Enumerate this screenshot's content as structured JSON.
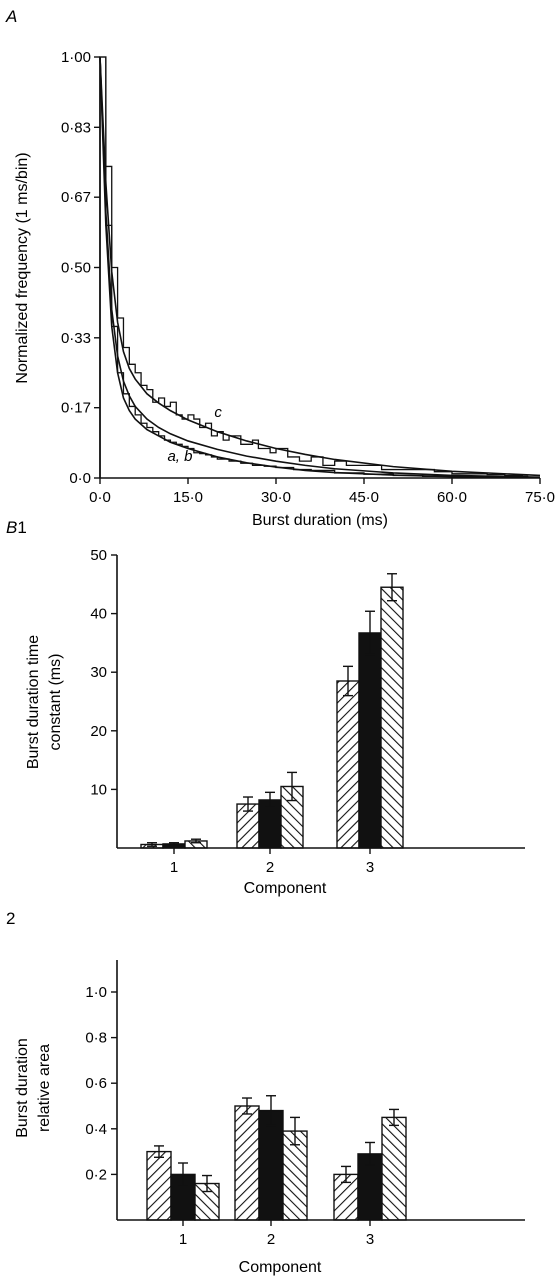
{
  "panels": {
    "a_label": "A",
    "b_label": "B",
    "b1_label": "1",
    "b2_label": "2"
  },
  "chart_data": [
    {
      "id": "A",
      "type": "line",
      "xlabel": "Burst duration (ms)",
      "ylabel": "Normalized frequency (1 ms/bin)",
      "xlim": [
        0,
        75
      ],
      "ylim": [
        0,
        1
      ],
      "x_tick_labels": [
        "0·0",
        "15·0",
        "30·0",
        "45·0",
        "60·0",
        "75·0"
      ],
      "x_ticks": [
        0,
        15,
        30,
        45,
        60,
        75
      ],
      "y_tick_labels": [
        "0·0",
        "0·17",
        "0·33",
        "0·50",
        "0·67",
        "0·83",
        "1·00"
      ],
      "y_ticks": [
        0,
        0.167,
        0.333,
        0.5,
        0.667,
        0.833,
        1.0
      ],
      "curve_labels": [
        {
          "text": "c",
          "at": [
            19.5,
            0.145
          ]
        },
        {
          "text": "a, b",
          "at": [
            11.5,
            0.04
          ]
        }
      ],
      "series": [
        {
          "name": "a",
          "kind": "fit",
          "x": [
            0,
            0.5,
            1,
            2,
            3,
            4,
            5,
            6,
            8,
            10,
            12,
            15,
            20,
            25,
            30,
            35,
            40,
            50,
            60,
            75
          ],
          "y": [
            1.0,
            0.8,
            0.6,
            0.36,
            0.25,
            0.19,
            0.16,
            0.14,
            0.115,
            0.1,
            0.085,
            0.07,
            0.05,
            0.036,
            0.026,
            0.018,
            0.013,
            0.007,
            0.003,
            0.001
          ]
        },
        {
          "name": "b",
          "kind": "fit",
          "x": [
            0,
            0.5,
            1,
            2,
            3,
            4,
            5,
            6,
            8,
            10,
            12,
            15,
            20,
            25,
            30,
            35,
            40,
            50,
            60,
            75
          ],
          "y": [
            1.0,
            0.82,
            0.63,
            0.4,
            0.29,
            0.23,
            0.195,
            0.17,
            0.14,
            0.12,
            0.105,
            0.088,
            0.068,
            0.052,
            0.04,
            0.03,
            0.022,
            0.012,
            0.006,
            0.002
          ]
        },
        {
          "name": "c",
          "kind": "fit",
          "x": [
            0,
            0.5,
            1,
            2,
            3,
            4,
            5,
            6,
            8,
            10,
            12,
            15,
            20,
            25,
            30,
            35,
            40,
            50,
            60,
            75
          ],
          "y": [
            1.0,
            0.85,
            0.7,
            0.49,
            0.37,
            0.3,
            0.26,
            0.235,
            0.2,
            0.178,
            0.16,
            0.138,
            0.11,
            0.088,
            0.07,
            0.056,
            0.044,
            0.027,
            0.016,
            0.006
          ]
        },
        {
          "name": "c",
          "kind": "histogram",
          "x": [
            0,
            1,
            2,
            3,
            4,
            5,
            6,
            7,
            8,
            9,
            10,
            11,
            12,
            13,
            14,
            15,
            16,
            17,
            18,
            19,
            20,
            21,
            22,
            23,
            24,
            25,
            26,
            27,
            28,
            29,
            30,
            32,
            34,
            36,
            38,
            40,
            42,
            45,
            48,
            51,
            54,
            57,
            60,
            63,
            66,
            69,
            72
          ],
          "y": [
            1.0,
            0.74,
            0.5,
            0.38,
            0.31,
            0.27,
            0.25,
            0.22,
            0.21,
            0.18,
            0.19,
            0.17,
            0.18,
            0.15,
            0.14,
            0.15,
            0.14,
            0.12,
            0.13,
            0.1,
            0.11,
            0.09,
            0.1,
            0.1,
            0.08,
            0.08,
            0.09,
            0.07,
            0.07,
            0.06,
            0.07,
            0.05,
            0.04,
            0.05,
            0.03,
            0.04,
            0.03,
            0.03,
            0.02,
            0.02,
            0.02,
            0.015,
            0.01,
            0.01,
            0.008,
            0.006,
            0.004
          ]
        },
        {
          "name": "a",
          "kind": "histogram",
          "x": [
            0,
            1,
            2,
            3,
            4,
            5,
            6,
            7,
            8,
            9,
            10,
            11,
            12,
            13,
            14,
            15,
            16,
            17,
            18,
            19,
            20,
            22,
            24,
            26,
            28,
            30,
            33,
            36,
            40,
            45,
            50,
            55,
            60,
            66,
            72
          ],
          "y": [
            1.0,
            0.6,
            0.36,
            0.25,
            0.2,
            0.17,
            0.15,
            0.13,
            0.12,
            0.11,
            0.1,
            0.09,
            0.085,
            0.08,
            0.075,
            0.07,
            0.06,
            0.058,
            0.055,
            0.05,
            0.045,
            0.04,
            0.035,
            0.03,
            0.028,
            0.025,
            0.02,
            0.018,
            0.012,
            0.009,
            0.006,
            0.004,
            0.003,
            0.002,
            0.001
          ]
        }
      ]
    },
    {
      "id": "B1",
      "type": "bar",
      "categories": [
        "1",
        "2",
        "3"
      ],
      "xlabel": "Component",
      "ylabel_lines": [
        "Burst duration time",
        "constant (ms)"
      ],
      "ylim": [
        0,
        50
      ],
      "y_ticks": [
        10,
        20,
        30,
        40,
        50
      ],
      "y_tick_labels": [
        "10",
        "20",
        "30",
        "40",
        "50"
      ],
      "series": [
        {
          "fill": "hatch-fwd",
          "values": [
            0.6,
            7.5,
            28.5
          ],
          "errors": [
            0.3,
            1.2,
            2.5
          ]
        },
        {
          "fill": "solid",
          "values": [
            0.7,
            8.2,
            36.7
          ],
          "errors": [
            0.2,
            1.3,
            3.7
          ]
        },
        {
          "fill": "hatch-back",
          "values": [
            1.2,
            10.5,
            44.5
          ],
          "errors": [
            0.3,
            2.4,
            2.3
          ]
        }
      ]
    },
    {
      "id": "B2",
      "type": "bar",
      "categories": [
        "1",
        "2",
        "3"
      ],
      "xlabel": "Component",
      "ylabel_lines": [
        "Burst duration",
        "relative area"
      ],
      "ylim": [
        0,
        1
      ],
      "y_ticks": [
        0.2,
        0.4,
        0.6,
        0.8,
        1.0
      ],
      "y_tick_labels": [
        "0·2",
        "0·4",
        "0·6",
        "0·8",
        "1·0"
      ],
      "series": [
        {
          "fill": "hatch-fwd",
          "values": [
            0.3,
            0.5,
            0.2
          ],
          "errors": [
            0.025,
            0.035,
            0.035
          ]
        },
        {
          "fill": "solid",
          "values": [
            0.2,
            0.48,
            0.29
          ],
          "errors": [
            0.05,
            0.065,
            0.05
          ]
        },
        {
          "fill": "hatch-back",
          "values": [
            0.16,
            0.39,
            0.45
          ],
          "errors": [
            0.035,
            0.06,
            0.035
          ]
        }
      ]
    }
  ]
}
